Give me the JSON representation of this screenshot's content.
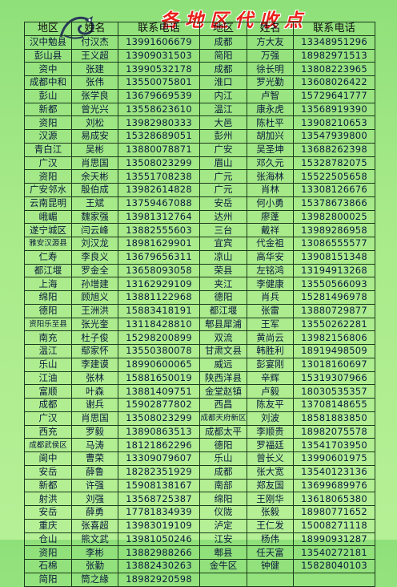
{
  "banner": "各地区代收点",
  "headers": {
    "region": "地区",
    "name": "姓名",
    "phone": "联系电话"
  },
  "rows": [
    [
      [
        "汉中勉县",
        "付汉杰",
        "13991606679"
      ],
      [
        "成都",
        "方大友",
        "13348951296"
      ]
    ],
    [
      [
        "彭山县",
        "王义超",
        "13909031503"
      ],
      [
        "简阳",
        "万强",
        "18982971513"
      ]
    ],
    [
      [
        "资中",
        "张建",
        "13990532178"
      ],
      [
        "成都",
        "徐长明",
        "13808223965"
      ]
    ],
    [
      [
        "成都中和",
        "张伟",
        "13550075801"
      ],
      [
        "淮口",
        "罗光勤",
        "13608026422"
      ]
    ],
    [
      [
        "彭山",
        "张学良",
        "13679669539"
      ],
      [
        "内江",
        "卢智",
        "15729641777"
      ]
    ],
    [
      [
        "新都",
        "曾光兴",
        "13558623610"
      ],
      [
        "温江",
        "康永虎",
        "13568919390"
      ]
    ],
    [
      [
        "资阳",
        "刘松",
        "13982980333"
      ],
      [
        "大邑",
        "陈杜平",
        "13908210653"
      ]
    ],
    [
      [
        "汉源",
        "易成安",
        "15328689051"
      ],
      [
        "彭州",
        "胡加兴",
        "13547939800"
      ]
    ],
    [
      [
        "青白江",
        "吴彬",
        "13880078871"
      ],
      [
        "广安",
        "吴圣坤",
        "13688262398"
      ]
    ],
    [
      [
        "广汉",
        "肖思国",
        "13508023299"
      ],
      [
        "眉山",
        "邓久元",
        "15328782075"
      ]
    ],
    [
      [
        "资阳",
        "余天彬",
        "13551708238"
      ],
      [
        "广元",
        "张海林",
        "15522505658"
      ]
    ],
    [
      [
        "广安邻水",
        "殷伯成",
        "13982614828"
      ],
      [
        "广元",
        "肖林",
        "13308126676"
      ]
    ],
    [
      [
        "云南昆明",
        "王斌",
        "13759467088"
      ],
      [
        "安岳",
        "何小勇",
        "15378673866"
      ]
    ],
    [
      [
        "峨嵋",
        "魏家强",
        "13981312764"
      ],
      [
        "达州",
        "廖蓬",
        "13982800025"
      ]
    ],
    [
      [
        "遂宁城区",
        "闫云峰",
        "13882555603"
      ],
      [
        "三台",
        "戴祥",
        "13989286958"
      ]
    ],
    [
      [
        "雅安汉源县",
        "刘汉龙",
        "18981629901"
      ],
      [
        "宜宾",
        "代金祖",
        "13086555577"
      ]
    ],
    [
      [
        "仁寿",
        "李良义",
        "13679656311"
      ],
      [
        "凉山",
        "高华安",
        "13908151348"
      ]
    ],
    [
      [
        "都江堰",
        "罗金全",
        "13658093058"
      ],
      [
        "荣县",
        "左铭鸿",
        "13194913268"
      ]
    ],
    [
      [
        "上海",
        "孙增建",
        "13162929109"
      ],
      [
        "夹江",
        "李健康",
        "13550566093"
      ]
    ],
    [
      [
        "绵阳",
        "顾旭义",
        "13881122968"
      ],
      [
        "德阳",
        "肖兵",
        "15281496978"
      ]
    ],
    [
      [
        "德阳",
        "王洲洪",
        "15883418191"
      ],
      [
        "都江堰",
        "张雷",
        "13880729877"
      ]
    ],
    [
      [
        "资阳乐至县",
        "张光奎",
        "13118428810"
      ],
      [
        "郫县犀浦",
        "王军",
        "13550262281"
      ]
    ],
    [
      [
        "南充",
        "杜子俊",
        "15298200899"
      ],
      [
        "双流",
        "黄尚云",
        "13982156806"
      ]
    ],
    [
      [
        "温江",
        "鄢家怀",
        "13550380078"
      ],
      [
        "甘肃文县",
        "韩胜利",
        "18919498509"
      ]
    ],
    [
      [
        "乐山",
        "李建谟",
        "18990600065"
      ],
      [
        "威远",
        "彭宴刚",
        "13018160697"
      ]
    ],
    [
      [
        "江油",
        "张林",
        "15881650019"
      ],
      [
        "陕西洋县",
        "辛辉",
        "15319307966"
      ]
    ],
    [
      [
        "富顺",
        "叶森",
        "13881409751"
      ],
      [
        "金堂赵镇",
        "卢毅",
        "18030535357"
      ]
    ],
    [
      [
        "成都",
        "谢兵",
        "15902877802"
      ],
      [
        "西昌",
        "陈友平",
        "13708148655"
      ]
    ],
    [
      [
        "广汉",
        "肖思国",
        "13508023299"
      ],
      [
        "成都天府新区",
        "刘波",
        "18581883850"
      ]
    ],
    [
      [
        "西充",
        "罗毅",
        "13890863513"
      ],
      [
        "成都太平",
        "李顺贵",
        "18982075578"
      ]
    ],
    [
      [
        "成都武侯区",
        "马涛",
        "18121862296"
      ],
      [
        "德阳",
        "罗福廷",
        "13541703950"
      ]
    ],
    [
      [
        "阆中",
        "曹荣",
        "13309079607"
      ],
      [
        "乐山",
        "曾长义",
        "13990601975"
      ]
    ],
    [
      [
        "安岳",
        "薛鲁",
        "18282351929"
      ],
      [
        "成都",
        "张大宽",
        "13540123136"
      ]
    ],
    [
      [
        "新都",
        "许强",
        "15908138167"
      ],
      [
        "南部",
        "郑友国",
        "13699689976"
      ]
    ],
    [
      [
        "射洪",
        "刘强",
        "13568725387"
      ],
      [
        "绵阳",
        "王刚华",
        "13618065380"
      ]
    ],
    [
      [
        "安岳",
        "薛勇",
        "17781834939"
      ],
      [
        "仪陇",
        "张毅",
        "18980771652"
      ]
    ],
    [
      [
        "重庆",
        "张喜超",
        "13983019109"
      ],
      [
        "泸定",
        "王仁发",
        "15008271118"
      ]
    ],
    [
      [
        "仓山",
        "熊文武",
        "13981050246"
      ],
      [
        "江安",
        "杨伟",
        "18990931287"
      ]
    ],
    [
      [
        "资阳",
        "李彬",
        "13882988266"
      ],
      [
        "郫县",
        "任天富",
        "13540272181"
      ]
    ],
    [
      [
        "石棉",
        "张勤",
        "13882430263"
      ],
      [
        "金牛区",
        "钟健",
        "15828040103"
      ]
    ],
    [
      [
        "简阳",
        "筒之緣",
        "18982920598"
      ],
      [
        "",
        "",
        ""
      ]
    ]
  ]
}
